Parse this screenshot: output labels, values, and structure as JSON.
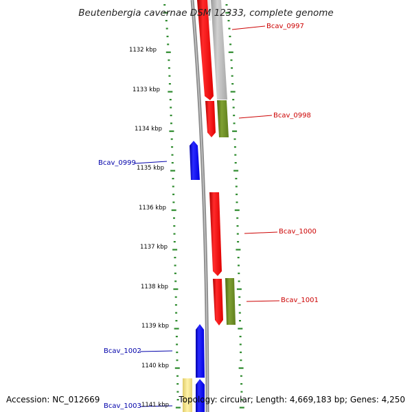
{
  "title": "Beutenbergia cavernae DSM 12333, complete genome",
  "accession": "Accession: NC_012669",
  "summary": "Topology: circular; Length: 4,669,183 bp; Genes: 4,250",
  "colors": {
    "forward_cds": "#ff0000",
    "reverse_cds": "#0000ff",
    "forward_feature": "#6b8e23",
    "partial_feature": "#b0b0b0",
    "tick_marks": "#2e8b2e",
    "backbone": "#888888",
    "yellow_feature": "#f0e08a"
  },
  "kbp_labels": [
    "1132 kbp",
    "1133 kbp",
    "1134 kbp",
    "1135 kbp",
    "1136 kbp",
    "1137 kbp",
    "1138 kbp",
    "1139 kbp",
    "1140 kbp",
    "1141 kbp"
  ],
  "genes": [
    {
      "name": "Bcav_0997",
      "strand": "forward"
    },
    {
      "name": "Bcav_0998",
      "strand": "forward"
    },
    {
      "name": "Bcav_0999",
      "strand": "reverse"
    },
    {
      "name": "Bcav_1000",
      "strand": "forward"
    },
    {
      "name": "Bcav_1001",
      "strand": "forward"
    },
    {
      "name": "Bcav_1002",
      "strand": "reverse"
    },
    {
      "name": "Bcav_1003",
      "strand": "reverse"
    }
  ]
}
